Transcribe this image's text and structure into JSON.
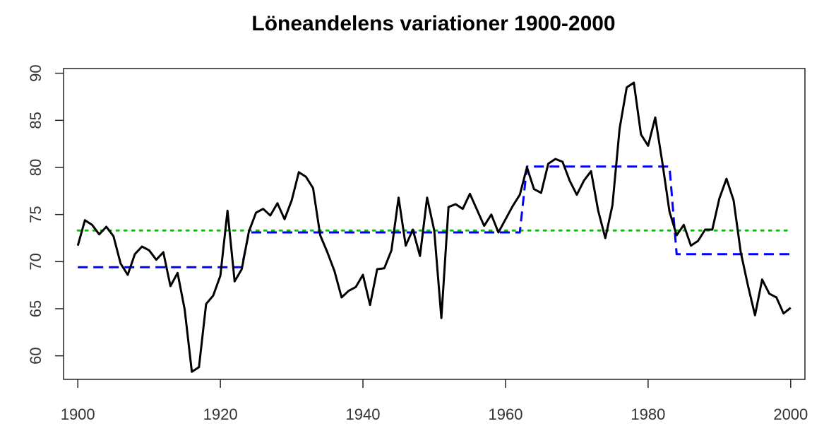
{
  "chart_data": {
    "type": "line",
    "title": "Löneandelens variationer 1900-2000",
    "xlabel": "",
    "ylabel": "",
    "xlim": [
      1898,
      2002
    ],
    "ylim": [
      57.5,
      90.5
    ],
    "x_ticks": [
      1900,
      1920,
      1940,
      1960,
      1980,
      2000
    ],
    "y_ticks": [
      60,
      65,
      70,
      75,
      80,
      85,
      90
    ],
    "grid": false,
    "legend": "none",
    "series": [
      {
        "style": "solid",
        "color": "#000000",
        "x": [
          1900,
          1901,
          1902,
          1903,
          1904,
          1905,
          1906,
          1907,
          1908,
          1909,
          1910,
          1911,
          1912,
          1913,
          1914,
          1915,
          1916,
          1917,
          1918,
          1919,
          1920,
          1921,
          1922,
          1923,
          1924,
          1925,
          1926,
          1927,
          1928,
          1929,
          1930,
          1931,
          1932,
          1933,
          1934,
          1935,
          1936,
          1937,
          1938,
          1939,
          1940,
          1941,
          1942,
          1943,
          1944,
          1945,
          1946,
          1947,
          1948,
          1949,
          1950,
          1951,
          1952,
          1953,
          1954,
          1955,
          1956,
          1957,
          1958,
          1959,
          1960,
          1961,
          1962,
          1963,
          1964,
          1965,
          1966,
          1967,
          1968,
          1969,
          1970,
          1971,
          1972,
          1973,
          1974,
          1975,
          1976,
          1977,
          1978,
          1979,
          1980,
          1981,
          1982,
          1983,
          1984,
          1985,
          1986,
          1987,
          1988,
          1989,
          1990,
          1991,
          1992,
          1993,
          1994,
          1995,
          1996,
          1997,
          1998,
          1999,
          2000
        ],
        "y": [
          71.7,
          74.4,
          73.9,
          72.9,
          73.7,
          72.7,
          69.8,
          68.6,
          70.8,
          71.6,
          71.2,
          70.2,
          71.0,
          67.4,
          68.8,
          64.9,
          58.3,
          58.8,
          65.5,
          66.4,
          68.5,
          75.4,
          67.9,
          69.2,
          73.2,
          75.2,
          75.6,
          74.9,
          76.2,
          74.5,
          76.5,
          79.5,
          79.0,
          77.8,
          72.8,
          71.0,
          69.0,
          66.2,
          66.9,
          67.3,
          68.6,
          65.4,
          69.2,
          69.3,
          71.2,
          76.8,
          71.7,
          73.4,
          70.6,
          76.8,
          73.3,
          64.0,
          75.8,
          76.1,
          75.6,
          77.2,
          75.5,
          73.8,
          75.0,
          73.1,
          74.5,
          75.9,
          77.1,
          80.0,
          77.7,
          77.3,
          80.4,
          80.9,
          80.6,
          78.6,
          77.1,
          78.6,
          79.6,
          75.4,
          72.5,
          76.0,
          84.1,
          88.5,
          89.0,
          83.5,
          82.3,
          85.3,
          80.5,
          75.3,
          72.8,
          73.9,
          71.7,
          72.2,
          73.4,
          73.4,
          76.7,
          78.8,
          76.5,
          71.0,
          67.5,
          64.3,
          68.1,
          66.6,
          66.2,
          64.5,
          65.1
        ]
      },
      {
        "style": "dashed",
        "color": "#0000ff",
        "x": [
          1900,
          1923,
          1923,
          1924,
          1924,
          1962,
          1962,
          1963,
          1963,
          1983,
          1983,
          1984,
          1984,
          2000
        ],
        "y": [
          69.4,
          69.4,
          69.4,
          73.1,
          73.1,
          73.1,
          73.1,
          80.1,
          80.1,
          80.1,
          80.1,
          70.8,
          70.8,
          70.8
        ]
      },
      {
        "style": "dotted",
        "color": "#00cc00",
        "x": [
          1900,
          2000
        ],
        "y": [
          73.3,
          73.3
        ]
      }
    ]
  }
}
